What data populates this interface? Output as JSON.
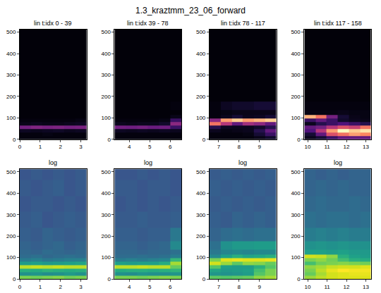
{
  "title": "1.3_kraztmm_23_06_forward",
  "chart_data": [
    {
      "type": "heatmap",
      "title": "lin t:idx 0 - 39",
      "color": "magma",
      "x": [
        0.27,
        0.82,
        1.37,
        1.91,
        2.46,
        3.01
      ],
      "y": [
        8,
        24,
        40,
        56,
        72,
        88,
        104,
        120,
        150,
        200,
        275,
        350,
        425,
        500
      ],
      "z": [
        [
          0.02,
          0.02,
          0.02,
          0.02,
          0.02,
          0.02
        ],
        [
          0.02,
          0.02,
          0.03,
          0.02,
          0.02,
          0.02
        ],
        [
          0.06,
          0.05,
          0.06,
          0.07,
          0.05,
          0.06
        ],
        [
          0.35,
          0.38,
          0.36,
          0.37,
          0.35,
          0.36
        ],
        [
          0.04,
          0.05,
          0.04,
          0.04,
          0.05,
          0.06
        ],
        [
          0.02,
          0.02,
          0.02,
          0.02,
          0.02,
          0.03
        ],
        [
          0.01,
          0.01,
          0.01,
          0.01,
          0.01,
          0.01
        ],
        [
          0.01,
          0.01,
          0.01,
          0.01,
          0.01,
          0.01
        ],
        [
          0.01,
          0.01,
          0.01,
          0.01,
          0.01,
          0.01
        ],
        [
          0.01,
          0.01,
          0.01,
          0.01,
          0.01,
          0.01
        ],
        [
          0.01,
          0.01,
          0.01,
          0.01,
          0.01,
          0.01
        ],
        [
          0.01,
          0.01,
          0.01,
          0.01,
          0.01,
          0.01
        ],
        [
          0.01,
          0.01,
          0.01,
          0.01,
          0.01,
          0.01
        ],
        [
          0.01,
          0.01,
          0.01,
          0.01,
          0.01,
          0.01
        ]
      ],
      "zlim": [
        0,
        1
      ],
      "xlim": [
        0,
        3.28
      ],
      "xticks": [
        0,
        1,
        2,
        3
      ],
      "ylim": [
        0,
        512
      ],
      "yticks": [
        0,
        100,
        200,
        300,
        400,
        500
      ]
    },
    {
      "type": "heatmap",
      "title": "lin t:idx 39 - 78",
      "color": "magma",
      "x": [
        3.55,
        4.1,
        4.64,
        5.19,
        5.73,
        6.28
      ],
      "y": [
        8,
        24,
        40,
        56,
        72,
        88,
        104,
        120,
        150,
        200,
        275,
        350,
        425,
        500
      ],
      "z": [
        [
          0.02,
          0.02,
          0.02,
          0.02,
          0.02,
          0.02
        ],
        [
          0.02,
          0.02,
          0.02,
          0.02,
          0.02,
          0.02
        ],
        [
          0.06,
          0.05,
          0.06,
          0.05,
          0.06,
          0.05
        ],
        [
          0.34,
          0.33,
          0.35,
          0.32,
          0.33,
          0.2
        ],
        [
          0.05,
          0.04,
          0.05,
          0.05,
          0.08,
          0.4
        ],
        [
          0.02,
          0.02,
          0.02,
          0.02,
          0.03,
          0.2
        ],
        [
          0.01,
          0.01,
          0.01,
          0.01,
          0.01,
          0.04
        ],
        [
          0.01,
          0.01,
          0.01,
          0.01,
          0.01,
          0.01
        ],
        [
          0.01,
          0.01,
          0.01,
          0.01,
          0.01,
          0.02
        ],
        [
          0.01,
          0.01,
          0.01,
          0.01,
          0.01,
          0.01
        ],
        [
          0.01,
          0.01,
          0.01,
          0.01,
          0.01,
          0.01
        ],
        [
          0.01,
          0.01,
          0.01,
          0.01,
          0.01,
          0.01
        ],
        [
          0.01,
          0.01,
          0.01,
          0.01,
          0.01,
          0.01
        ],
        [
          0.01,
          0.01,
          0.01,
          0.01,
          0.01,
          0.01
        ]
      ],
      "zlim": [
        0,
        1
      ],
      "xlim": [
        3.28,
        6.55
      ],
      "xticks": [
        4,
        5,
        6
      ],
      "ylim": [
        0,
        512
      ],
      "yticks": [
        0,
        100,
        200,
        300,
        400,
        500
      ]
    },
    {
      "type": "heatmap",
      "title": "lin t:idx 78 - 117",
      "color": "magma",
      "x": [
        6.82,
        7.37,
        7.92,
        8.46,
        9.01,
        9.56
      ],
      "y": [
        8,
        24,
        40,
        56,
        72,
        88,
        104,
        120,
        150,
        200,
        275,
        350,
        425,
        500
      ],
      "z": [
        [
          0.02,
          0.02,
          0.02,
          0.02,
          0.04,
          0.08
        ],
        [
          0.02,
          0.02,
          0.02,
          0.03,
          0.1,
          0.2
        ],
        [
          0.05,
          0.03,
          0.04,
          0.05,
          0.15,
          0.3
        ],
        [
          0.15,
          0.06,
          0.05,
          0.05,
          0.08,
          0.15
        ],
        [
          0.7,
          0.5,
          0.3,
          0.45,
          0.4,
          0.3
        ],
        [
          0.4,
          0.8,
          0.9,
          0.8,
          0.85,
          0.9
        ],
        [
          0.02,
          0.05,
          0.1,
          0.05,
          0.06,
          0.1
        ],
        [
          0.02,
          0.03,
          0.04,
          0.04,
          0.04,
          0.04
        ],
        [
          0.02,
          0.06,
          0.08,
          0.08,
          0.1,
          0.1
        ],
        [
          0.01,
          0.01,
          0.01,
          0.01,
          0.01,
          0.01
        ],
        [
          0.01,
          0.01,
          0.01,
          0.01,
          0.01,
          0.01
        ],
        [
          0.01,
          0.01,
          0.01,
          0.01,
          0.01,
          0.01
        ],
        [
          0.01,
          0.01,
          0.01,
          0.01,
          0.01,
          0.01
        ],
        [
          0.01,
          0.01,
          0.01,
          0.01,
          0.01,
          0.01
        ]
      ],
      "zlim": [
        0,
        1
      ],
      "xlim": [
        6.55,
        9.83
      ],
      "xticks": [
        7,
        8,
        9
      ],
      "ylim": [
        0,
        512
      ],
      "yticks": [
        0,
        100,
        200,
        300,
        400,
        500
      ]
    },
    {
      "type": "heatmap",
      "title": "lin t:idx 117 - 158",
      "color": "magma",
      "x": [
        10.12,
        10.69,
        11.26,
        11.84,
        12.41,
        12.98
      ],
      "y": [
        8,
        24,
        40,
        56,
        72,
        88,
        104,
        120,
        150,
        200,
        275,
        350,
        425,
        500
      ],
      "z": [
        [
          0.05,
          0.1,
          0.2,
          0.3,
          0.3,
          0.3
        ],
        [
          0.1,
          0.3,
          0.6,
          0.7,
          0.8,
          0.75
        ],
        [
          0.25,
          0.5,
          0.8,
          1.0,
          0.9,
          0.95
        ],
        [
          0.3,
          0.35,
          0.5,
          0.6,
          0.55,
          0.7
        ],
        [
          0.05,
          0.15,
          0.2,
          0.25,
          0.2,
          0.15
        ],
        [
          0.2,
          0.3,
          0.2,
          0.08,
          0.05,
          0.04
        ],
        [
          0.85,
          0.7,
          0.35,
          0.1,
          0.04,
          0.03
        ],
        [
          0.03,
          0.03,
          0.03,
          0.04,
          0.03,
          0.03
        ],
        [
          0.02,
          0.02,
          0.02,
          0.02,
          0.02,
          0.02
        ],
        [
          0.01,
          0.01,
          0.01,
          0.01,
          0.01,
          0.01
        ],
        [
          0.01,
          0.01,
          0.01,
          0.01,
          0.01,
          0.01
        ],
        [
          0.01,
          0.01,
          0.01,
          0.01,
          0.01,
          0.01
        ],
        [
          0.01,
          0.01,
          0.01,
          0.01,
          0.01,
          0.01
        ],
        [
          0.01,
          0.01,
          0.01,
          0.01,
          0.01,
          0.01
        ]
      ],
      "zlim": [
        0,
        1
      ],
      "xlim": [
        9.83,
        13.27
      ],
      "xticks": [
        10,
        11,
        12,
        13
      ],
      "ylim": [
        0,
        512
      ],
      "yticks": [
        0,
        100,
        200,
        300,
        400,
        500
      ]
    },
    {
      "type": "heatmap",
      "title": "log",
      "color": "viridis",
      "x": [
        0.27,
        0.82,
        1.37,
        1.91,
        2.46,
        3.01
      ],
      "y": [
        8,
        24,
        40,
        56,
        72,
        88,
        104,
        120,
        150,
        200,
        275,
        350,
        425,
        500
      ],
      "z": [
        [
          -1.2,
          -1.3,
          -1.2,
          -1.1,
          -1.3,
          -1.2
        ],
        [
          -3.0,
          -2.9,
          -3.1,
          -3.0,
          -2.8,
          -3.0
        ],
        [
          -2.2,
          -2.3,
          -2.1,
          -2.2,
          -2.3,
          -2.2
        ],
        [
          -0.6,
          -0.5,
          -0.6,
          -0.5,
          -0.6,
          -0.6
        ],
        [
          -2.7,
          -2.6,
          -2.8,
          -2.7,
          -2.6,
          -2.5
        ],
        [
          -3.5,
          -3.4,
          -3.6,
          -3.5,
          -3.4,
          -3.4
        ],
        [
          -3.9,
          -3.8,
          -4.0,
          -3.9,
          -3.8,
          -3.9
        ],
        [
          -4.0,
          -4.1,
          -3.9,
          -4.0,
          -4.1,
          -4.0
        ],
        [
          -4.1,
          -4.2,
          -4.1,
          -4.0,
          -4.2,
          -4.1
        ],
        [
          -4.2,
          -4.3,
          -4.1,
          -4.2,
          -4.3,
          -4.2
        ],
        [
          -4.3,
          -4.2,
          -4.4,
          -4.3,
          -4.2,
          -4.3
        ],
        [
          -4.4,
          -4.3,
          -4.3,
          -4.4,
          -4.3,
          -4.4
        ],
        [
          -4.3,
          -4.4,
          -4.3,
          -4.2,
          -4.4,
          -4.3
        ],
        [
          -4.4,
          -4.3,
          -4.4,
          -4.3,
          -4.4,
          -4.3
        ]
      ],
      "zlim": [
        -6,
        0
      ],
      "xlim": [
        0,
        3.28
      ],
      "xticks": [
        0,
        1,
        2,
        3
      ],
      "ylim": [
        0,
        512
      ],
      "yticks": [
        0,
        100,
        200,
        300,
        400,
        500
      ]
    },
    {
      "type": "heatmap",
      "title": "log",
      "color": "viridis",
      "x": [
        3.55,
        4.1,
        4.64,
        5.19,
        5.73,
        6.28
      ],
      "y": [
        8,
        24,
        40,
        56,
        72,
        88,
        104,
        120,
        150,
        200,
        275,
        350,
        425,
        500
      ],
      "z": [
        [
          -1.2,
          -1.2,
          -1.3,
          -1.2,
          -1.1,
          -1.2
        ],
        [
          -3.0,
          -3.1,
          -2.9,
          -3.0,
          -3.0,
          -2.9
        ],
        [
          -2.3,
          -2.2,
          -2.2,
          -2.3,
          -2.2,
          -2.1
        ],
        [
          -0.6,
          -0.6,
          -0.5,
          -0.6,
          -0.6,
          -1.4
        ],
        [
          -2.6,
          -2.7,
          -2.6,
          -2.6,
          -2.3,
          -0.8
        ],
        [
          -3.5,
          -3.4,
          -3.5,
          -3.4,
          -3.3,
          -2.0
        ],
        [
          -3.9,
          -3.9,
          -3.8,
          -3.9,
          -3.8,
          -3.5
        ],
        [
          -4.0,
          -4.0,
          -4.1,
          -4.0,
          -4.0,
          -3.8
        ],
        [
          -4.1,
          -4.1,
          -4.2,
          -4.1,
          -4.0,
          -3.2
        ],
        [
          -4.2,
          -4.2,
          -4.3,
          -4.2,
          -4.2,
          -3.6
        ],
        [
          -4.3,
          -4.3,
          -4.2,
          -4.3,
          -4.3,
          -4.2
        ],
        [
          -4.4,
          -4.3,
          -4.4,
          -4.3,
          -4.4,
          -4.3
        ],
        [
          -4.3,
          -4.3,
          -4.4,
          -4.3,
          -4.3,
          -4.4
        ],
        [
          -4.4,
          -4.4,
          -4.3,
          -4.4,
          -4.3,
          -4.4
        ]
      ],
      "zlim": [
        -6,
        0
      ],
      "xlim": [
        3.28,
        6.55
      ],
      "xticks": [
        4,
        5,
        6
      ],
      "ylim": [
        0,
        512
      ],
      "yticks": [
        0,
        100,
        200,
        300,
        400,
        500
      ]
    },
    {
      "type": "heatmap",
      "title": "log",
      "color": "viridis",
      "x": [
        6.82,
        7.37,
        7.92,
        8.46,
        9.01,
        9.56
      ],
      "y": [
        8,
        24,
        40,
        56,
        72,
        88,
        104,
        120,
        150,
        200,
        275,
        350,
        425,
        500
      ],
      "z": [
        [
          -1.5,
          -1.6,
          -1.5,
          -1.4,
          -1.0,
          -0.8
        ],
        [
          -2.9,
          -3.0,
          -2.9,
          -2.7,
          -1.6,
          -1.2
        ],
        [
          -2.5,
          -2.8,
          -2.7,
          -2.6,
          -1.8,
          -1.2
        ],
        [
          -1.6,
          -2.6,
          -2.7,
          -2.7,
          -2.2,
          -1.6
        ],
        [
          -0.4,
          -0.9,
          -1.5,
          -1.0,
          -1.1,
          -1.4
        ],
        [
          -1.2,
          -0.3,
          -0.2,
          -0.3,
          -0.3,
          -0.2
        ],
        [
          -3.2,
          -2.6,
          -2.2,
          -2.5,
          -2.4,
          -2.2
        ],
        [
          -3.6,
          -3.3,
          -3.2,
          -3.3,
          -3.2,
          -3.2
        ],
        [
          -3.8,
          -3.0,
          -2.8,
          -2.8,
          -2.7,
          -2.7
        ],
        [
          -4.1,
          -3.9,
          -3.8,
          -3.9,
          -3.8,
          -3.8
        ],
        [
          -4.2,
          -4.3,
          -4.1,
          -4.2,
          -4.1,
          -4.2
        ],
        [
          -4.3,
          -4.2,
          -4.3,
          -4.2,
          -4.3,
          -4.2
        ],
        [
          -4.2,
          -4.3,
          -4.2,
          -4.3,
          -4.2,
          -4.3
        ],
        [
          -4.3,
          -4.2,
          -4.3,
          -4.2,
          -4.3,
          -4.2
        ]
      ],
      "zlim": [
        -6,
        0
      ],
      "xlim": [
        6.55,
        9.83
      ],
      "xticks": [
        7,
        8,
        9
      ],
      "ylim": [
        0,
        512
      ],
      "yticks": [
        0,
        100,
        200,
        300,
        400,
        500
      ]
    },
    {
      "type": "heatmap",
      "title": "log",
      "color": "viridis",
      "x": [
        10.12,
        10.69,
        11.26,
        11.84,
        12.41,
        12.98
      ],
      "y": [
        8,
        24,
        40,
        56,
        72,
        88,
        104,
        120,
        150,
        200,
        275,
        350,
        425,
        500
      ],
      "z": [
        [
          -0.9,
          -0.6,
          -0.4,
          -0.3,
          -0.3,
          -0.3
        ],
        [
          -1.4,
          -0.8,
          -0.4,
          -0.3,
          -0.2,
          -0.2
        ],
        [
          -1.2,
          -0.6,
          -0.2,
          0,
          -0.1,
          -0.1
        ],
        [
          -1.0,
          -0.8,
          -0.5,
          -0.4,
          -0.4,
          -0.3
        ],
        [
          -1.8,
          -1.3,
          -1.2,
          -1.1,
          -1.2,
          -1.3
        ],
        [
          -1.2,
          -1.0,
          -1.3,
          -1.8,
          -2.2,
          -2.3
        ],
        [
          -0.4,
          -0.5,
          -1.0,
          -2.2,
          -2.6,
          -2.7
        ],
        [
          -2.6,
          -2.6,
          -2.7,
          -2.6,
          -2.8,
          -2.8
        ],
        [
          -3.0,
          -2.9,
          -3.0,
          -2.9,
          -3.0,
          -3.0
        ],
        [
          -3.5,
          -3.4,
          -3.5,
          -3.4,
          -3.5,
          -3.5
        ],
        [
          -3.8,
          -3.9,
          -3.8,
          -3.8,
          -3.9,
          -3.8
        ],
        [
          -4.0,
          -3.9,
          -4.0,
          -4.0,
          -3.9,
          -4.0
        ],
        [
          -4.1,
          -4.0,
          -4.1,
          -4.0,
          -4.1,
          -4.1
        ],
        [
          -4.1,
          -4.2,
          -4.1,
          -4.2,
          -4.1,
          -4.1
        ]
      ],
      "zlim": [
        -6,
        0
      ],
      "xlim": [
        9.83,
        13.27
      ],
      "xticks": [
        10,
        11,
        12,
        13
      ],
      "ylim": [
        0,
        512
      ],
      "yticks": [
        0,
        100,
        200,
        300,
        400,
        500
      ]
    }
  ]
}
